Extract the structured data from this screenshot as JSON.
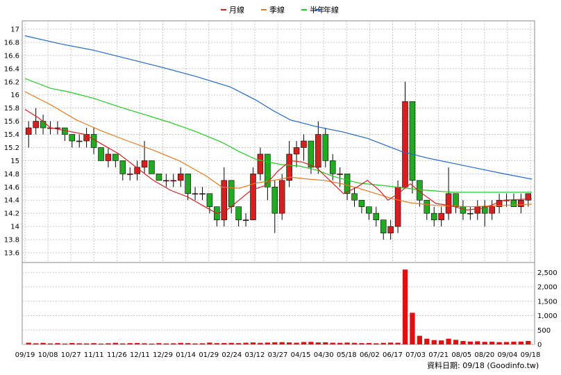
{
  "chart_data": [
    {
      "type": "candlestick",
      "legend_placement": "top-center",
      "grid": true,
      "series": [
        {
          "name": "月線",
          "color": "#d62020"
        },
        {
          "name": "季線",
          "color": "#e8781e"
        },
        {
          "name": "半年",
          "color": "#22cc22"
        },
        {
          "name": "年線",
          "color": "#2266cc"
        }
      ],
      "candle_colors": {
        "up": "#d62020",
        "down": "#22aa22"
      },
      "ylim": [
        13.6,
        17.0
      ],
      "yticks": [
        "13.6",
        "13.8",
        "14",
        "14.2",
        "14.4",
        "14.6",
        "14.8",
        "15",
        "15.2",
        "15.4",
        "15.6",
        "15.8",
        "16",
        "16.2",
        "16.4",
        "16.6",
        "16.8",
        "17"
      ],
      "xticks": [
        "09/19",
        "10/08",
        "10/27",
        "11/11",
        "11/26",
        "12/11",
        "12/29",
        "01/14",
        "01/29",
        "02/24",
        "03/12",
        "03/27",
        "04/15",
        "04/30",
        "05/18",
        "06/02",
        "06/17",
        "07/03",
        "07/21",
        "08/05",
        "08/20",
        "09/04",
        "09/18"
      ],
      "ma_year": [
        [
          0,
          16.9
        ],
        [
          20,
          16.78
        ],
        [
          40,
          16.68
        ],
        [
          60,
          16.55
        ],
        [
          80,
          16.42
        ],
        [
          100,
          16.28
        ],
        [
          120,
          16.12
        ],
        [
          135,
          15.92
        ],
        [
          145,
          15.76
        ],
        [
          155,
          15.62
        ],
        [
          170,
          15.52
        ],
        [
          185,
          15.44
        ],
        [
          200,
          15.34
        ],
        [
          210,
          15.24
        ],
        [
          220,
          15.14
        ],
        [
          235,
          15.04
        ],
        [
          250,
          14.96
        ],
        [
          265,
          14.88
        ],
        [
          280,
          14.8
        ],
        [
          296,
          14.72
        ]
      ],
      "ma_half": [
        [
          0,
          16.25
        ],
        [
          15,
          16.1
        ],
        [
          25,
          16.05
        ],
        [
          40,
          15.95
        ],
        [
          55,
          15.82
        ],
        [
          70,
          15.7
        ],
        [
          85,
          15.58
        ],
        [
          100,
          15.44
        ],
        [
          115,
          15.28
        ],
        [
          125,
          15.14
        ],
        [
          135,
          15.02
        ],
        [
          150,
          14.94
        ],
        [
          160,
          14.92
        ],
        [
          170,
          14.86
        ],
        [
          180,
          14.76
        ],
        [
          195,
          14.66
        ],
        [
          210,
          14.62
        ],
        [
          230,
          14.56
        ],
        [
          250,
          14.52
        ],
        [
          270,
          14.52
        ],
        [
          296,
          14.52
        ]
      ],
      "ma_quarter": [
        [
          0,
          16.05
        ],
        [
          15,
          15.85
        ],
        [
          30,
          15.62
        ],
        [
          45,
          15.45
        ],
        [
          60,
          15.3
        ],
        [
          75,
          15.16
        ],
        [
          90,
          15.0
        ],
        [
          105,
          14.78
        ],
        [
          115,
          14.6
        ],
        [
          125,
          14.58
        ],
        [
          135,
          14.66
        ],
        [
          145,
          14.7
        ],
        [
          155,
          14.75
        ],
        [
          165,
          14.72
        ],
        [
          175,
          14.7
        ],
        [
          185,
          14.65
        ],
        [
          195,
          14.58
        ],
        [
          205,
          14.5
        ],
        [
          215,
          14.42
        ],
        [
          225,
          14.36
        ],
        [
          240,
          14.32
        ],
        [
          260,
          14.3
        ],
        [
          280,
          14.32
        ],
        [
          296,
          14.34
        ]
      ],
      "ma_month": [
        [
          0,
          15.78
        ],
        [
          8,
          15.65
        ],
        [
          15,
          15.5
        ],
        [
          25,
          15.45
        ],
        [
          35,
          15.4
        ],
        [
          45,
          15.25
        ],
        [
          55,
          15.1
        ],
        [
          65,
          14.9
        ],
        [
          75,
          14.7
        ],
        [
          85,
          14.55
        ],
        [
          95,
          14.45
        ],
        [
          105,
          14.3
        ],
        [
          112,
          14.2
        ],
        [
          118,
          14.25
        ],
        [
          125,
          14.4
        ],
        [
          132,
          14.55
        ],
        [
          140,
          14.62
        ],
        [
          148,
          14.85
        ],
        [
          155,
          15.0
        ],
        [
          162,
          14.98
        ],
        [
          170,
          14.9
        ],
        [
          178,
          14.7
        ],
        [
          186,
          14.5
        ],
        [
          194,
          14.6
        ],
        [
          200,
          14.7
        ],
        [
          207,
          14.55
        ],
        [
          212,
          14.4
        ],
        [
          218,
          14.5
        ],
        [
          225,
          14.65
        ],
        [
          232,
          14.5
        ],
        [
          240,
          14.35
        ],
        [
          248,
          14.32
        ],
        [
          258,
          14.25
        ],
        [
          268,
          14.28
        ],
        [
          280,
          14.4
        ],
        [
          296,
          14.42
        ]
      ],
      "candles": [
        [
          15.4,
          15.6,
          15.2,
          15.5
        ],
        [
          15.5,
          15.8,
          15.4,
          15.6
        ],
        [
          15.6,
          15.7,
          15.4,
          15.5
        ],
        [
          15.5,
          15.6,
          15.4,
          15.5
        ],
        [
          15.5,
          15.6,
          15.4,
          15.5
        ],
        [
          15.5,
          15.5,
          15.3,
          15.4
        ],
        [
          15.4,
          15.4,
          15.2,
          15.3
        ],
        [
          15.3,
          15.4,
          15.2,
          15.3
        ],
        [
          15.3,
          15.5,
          15.2,
          15.4
        ],
        [
          15.4,
          15.5,
          15.1,
          15.2
        ],
        [
          15.2,
          15.2,
          15.0,
          15.0
        ],
        [
          15.0,
          15.2,
          14.9,
          15.1
        ],
        [
          15.1,
          15.1,
          14.9,
          15.0
        ],
        [
          15.0,
          15.0,
          14.7,
          14.8
        ],
        [
          14.8,
          14.9,
          14.7,
          14.8
        ],
        [
          14.8,
          15.0,
          14.7,
          14.9
        ],
        [
          14.9,
          15.3,
          14.8,
          15.0
        ],
        [
          15.0,
          15.0,
          14.8,
          14.8
        ],
        [
          14.8,
          14.8,
          14.7,
          14.7
        ],
        [
          14.7,
          14.8,
          14.6,
          14.7
        ],
        [
          14.7,
          14.8,
          14.6,
          14.7
        ],
        [
          14.7,
          14.9,
          14.6,
          14.8
        ],
        [
          14.8,
          14.8,
          14.4,
          14.5
        ],
        [
          14.5,
          14.6,
          14.4,
          14.5
        ],
        [
          14.5,
          14.6,
          14.4,
          14.5
        ],
        [
          14.5,
          14.5,
          14.2,
          14.3
        ],
        [
          14.3,
          14.3,
          14.0,
          14.1
        ],
        [
          14.1,
          14.9,
          14.0,
          14.7
        ],
        [
          14.7,
          14.7,
          14.2,
          14.3
        ],
        [
          14.3,
          14.3,
          14.0,
          14.1
        ],
        [
          14.1,
          14.2,
          14.0,
          14.1
        ],
        [
          14.1,
          14.9,
          14.1,
          14.8
        ],
        [
          14.8,
          15.2,
          14.7,
          15.1
        ],
        [
          15.1,
          15.1,
          14.4,
          14.6
        ],
        [
          14.6,
          14.7,
          13.9,
          14.2
        ],
        [
          14.2,
          14.8,
          14.1,
          14.7
        ],
        [
          14.7,
          15.3,
          14.6,
          15.1
        ],
        [
          15.1,
          15.3,
          14.9,
          15.2
        ],
        [
          15.2,
          15.4,
          15.0,
          15.3
        ],
        [
          15.3,
          15.3,
          14.8,
          14.9
        ],
        [
          14.9,
          15.6,
          14.8,
          15.4
        ],
        [
          15.4,
          15.5,
          14.9,
          15.0
        ],
        [
          15.0,
          15.1,
          14.7,
          14.8
        ],
        [
          14.8,
          14.9,
          14.6,
          14.8
        ],
        [
          14.8,
          14.8,
          14.4,
          14.5
        ],
        [
          14.5,
          14.6,
          14.3,
          14.4
        ],
        [
          14.4,
          14.4,
          14.2,
          14.3
        ],
        [
          14.3,
          14.3,
          14.1,
          14.2
        ],
        [
          14.2,
          14.3,
          14.0,
          14.1
        ],
        [
          14.1,
          14.1,
          13.8,
          13.9
        ],
        [
          13.9,
          14.1,
          13.8,
          14.0
        ],
        [
          14.0,
          14.7,
          13.9,
          14.6
        ],
        [
          14.6,
          16.2,
          14.6,
          15.9
        ],
        [
          15.9,
          15.9,
          14.5,
          14.7
        ],
        [
          14.7,
          14.7,
          14.3,
          14.4
        ],
        [
          14.4,
          14.4,
          14.1,
          14.2
        ],
        [
          14.2,
          14.3,
          14.0,
          14.1
        ],
        [
          14.1,
          14.3,
          14.0,
          14.2
        ],
        [
          14.2,
          14.9,
          14.1,
          14.5
        ],
        [
          14.5,
          14.5,
          14.2,
          14.3
        ],
        [
          14.3,
          14.4,
          14.1,
          14.2
        ],
        [
          14.2,
          14.3,
          14.1,
          14.2
        ],
        [
          14.2,
          14.4,
          14.1,
          14.3
        ],
        [
          14.3,
          14.4,
          14.0,
          14.2
        ],
        [
          14.2,
          14.4,
          14.1,
          14.3
        ],
        [
          14.3,
          14.5,
          14.2,
          14.4
        ],
        [
          14.4,
          14.5,
          14.3,
          14.4
        ],
        [
          14.4,
          14.5,
          14.3,
          14.3
        ],
        [
          14.3,
          14.5,
          14.2,
          14.4
        ],
        [
          14.4,
          14.5,
          14.3,
          14.5
        ]
      ],
      "volume": {
        "ylim": [
          0,
          2700
        ],
        "yticks": [
          "0",
          "500",
          "1,000",
          "1,500",
          "2,000",
          "2,500"
        ],
        "values": [
          60,
          40,
          55,
          35,
          45,
          30,
          50,
          40,
          35,
          45,
          30,
          40,
          55,
          35,
          45,
          50,
          40,
          30,
          45,
          35,
          40,
          55,
          45,
          35,
          40,
          65,
          45,
          50,
          55,
          45,
          60,
          70,
          55,
          65,
          75,
          80,
          70,
          60,
          85,
          90,
          70,
          75,
          60,
          55,
          65,
          55,
          45,
          50,
          40,
          55,
          65,
          60,
          2600,
          1100,
          300,
          200,
          150,
          140,
          200,
          160,
          120,
          100,
          110,
          90,
          95,
          80,
          85,
          95,
          100,
          120
        ]
      },
      "footer": "資料日期: 09/18  (Goodinfo.tw)"
    }
  ]
}
